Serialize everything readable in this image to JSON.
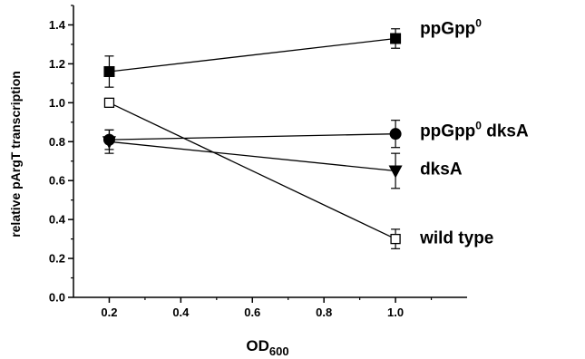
{
  "chart_data": {
    "type": "line",
    "xlabel_base": "OD",
    "xlabel_sub": "600",
    "ylabel": "relative pArgT transcription",
    "xlim": [
      0.1,
      1.2
    ],
    "ylim": [
      0.0,
      1.5
    ],
    "xticks": [
      0.2,
      0.4,
      0.6,
      0.8,
      1.0
    ],
    "xtick_labels": [
      "0.2",
      "0.4",
      "0.6",
      "0.8",
      "1.0"
    ],
    "yticks": [
      0.0,
      0.2,
      0.4,
      0.6,
      0.8,
      1.0,
      1.2,
      1.4
    ],
    "ytick_labels": [
      "0.0",
      "0.2",
      "0.4",
      "0.6",
      "0.8",
      "1.0",
      "1.2",
      "1.4"
    ],
    "grid": false,
    "legend": "none",
    "series": [
      {
        "key": "ppgpp0",
        "label_base": "ppGpp",
        "label_sup": "0",
        "label_rest": "",
        "marker": "square-filled",
        "x": [
          0.2,
          1.0
        ],
        "y": [
          1.16,
          1.33
        ],
        "err": [
          0.08,
          0.05
        ]
      },
      {
        "key": "ppgpp0-dksa",
        "label_base": "ppGpp",
        "label_sup": "0",
        "label_rest": " dksA",
        "marker": "circle-filled",
        "x": [
          0.2,
          1.0
        ],
        "y": [
          0.81,
          0.84
        ],
        "err": [
          0.05,
          0.07
        ]
      },
      {
        "key": "dksa",
        "label_base": "dksA",
        "label_sup": "",
        "label_rest": "",
        "marker": "triangle-down-filled",
        "x": [
          0.2,
          1.0
        ],
        "y": [
          0.8,
          0.65
        ],
        "err": [
          0.06,
          0.09
        ]
      },
      {
        "key": "wild-type",
        "label_base": "wild type",
        "label_sup": "",
        "label_rest": "",
        "marker": "square-open",
        "x": [
          0.2,
          1.0
        ],
        "y": [
          1.0,
          0.3
        ],
        "err": [
          0.02,
          0.05
        ]
      }
    ],
    "colors": {
      "line": "#000000",
      "open_fill": "#ffffff"
    }
  }
}
